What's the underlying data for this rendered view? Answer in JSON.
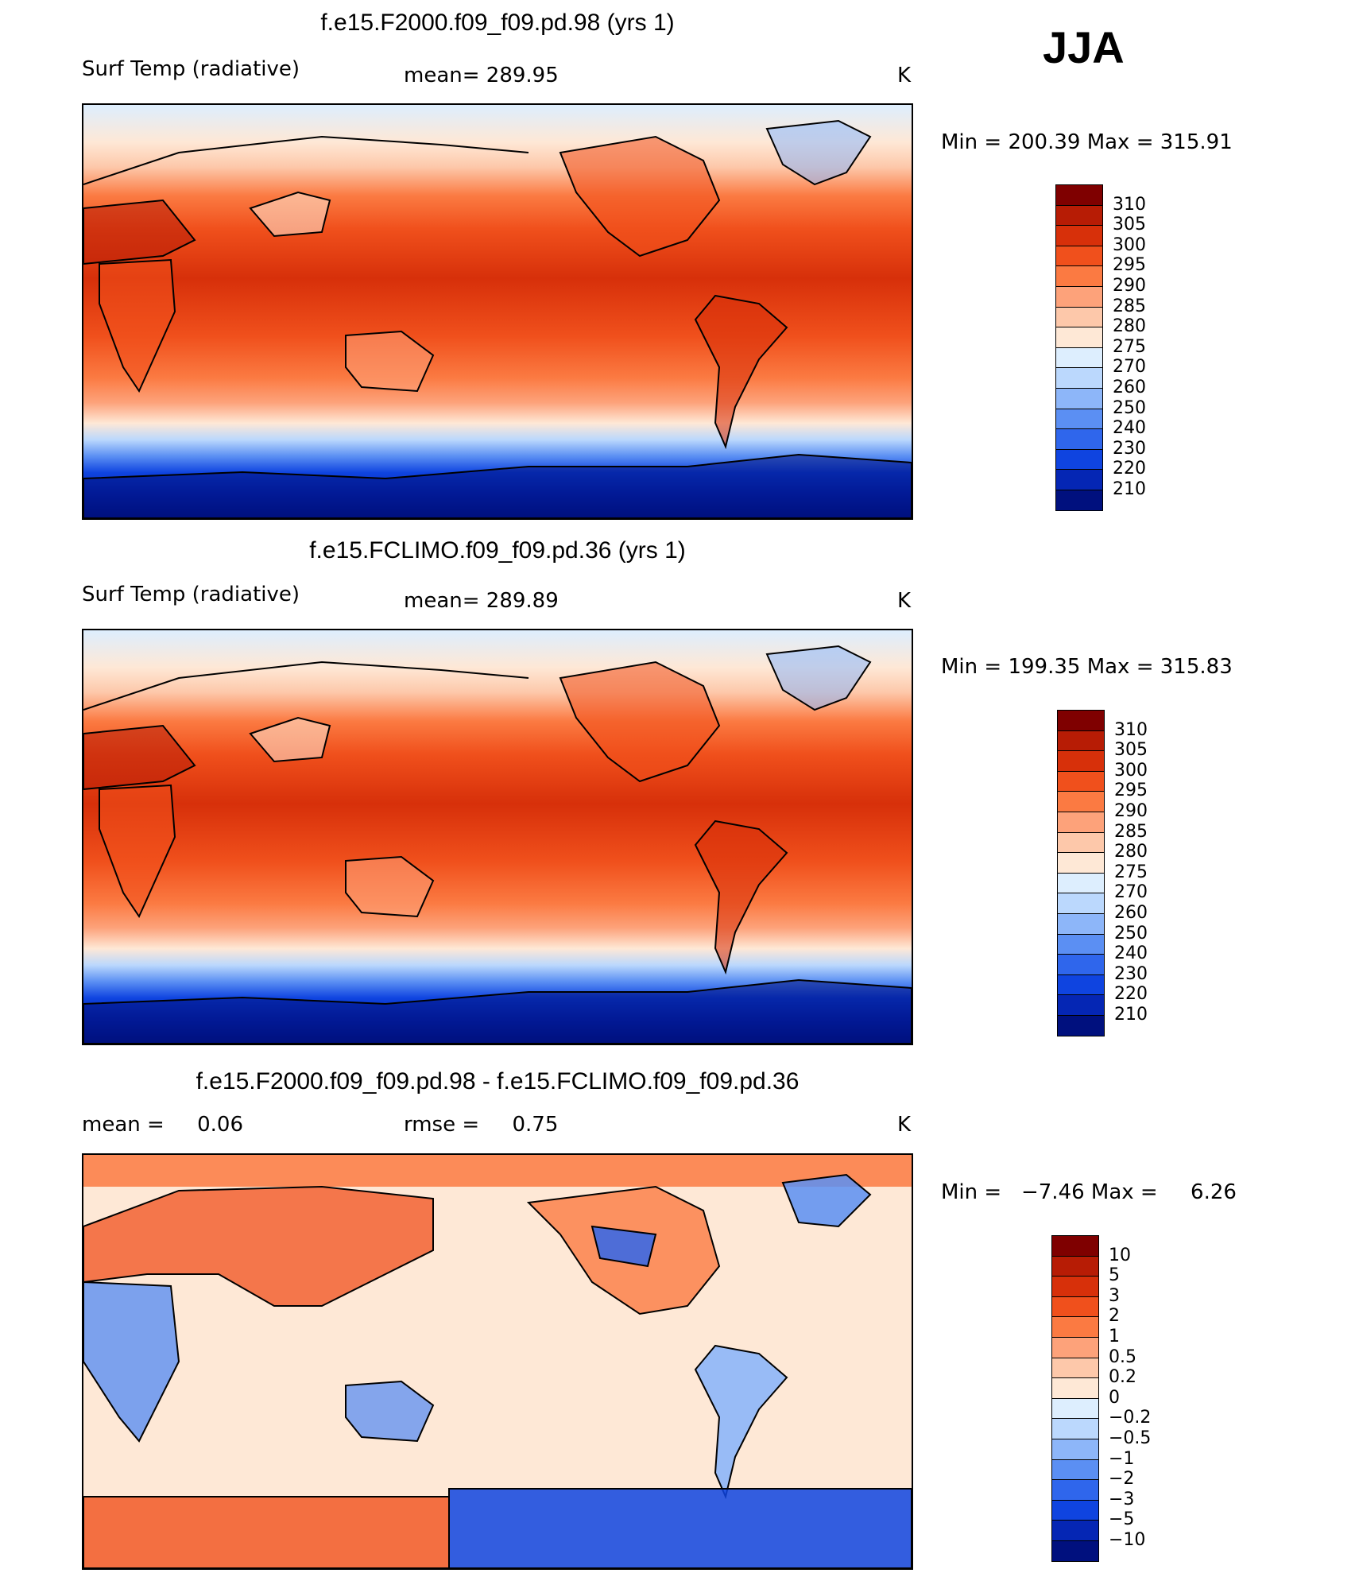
{
  "season": "JJA",
  "panels": [
    {
      "title": "f.e15.F2000.f09_f09.pd.98 (yrs 1)",
      "left_label": "Surf Temp (radiative)",
      "center_label": "mean= 289.95",
      "right_label": "K",
      "minmax": "Min = 200.39 Max = 315.91",
      "cbar_labels": [
        "310",
        "305",
        "300",
        "295",
        "290",
        "285",
        "280",
        "275",
        "270",
        "260",
        "250",
        "240",
        "230",
        "220",
        "210"
      ],
      "cbar_colors": [
        "#7f0000",
        "#b71c05",
        "#d7300a",
        "#f0501c",
        "#fb7a42",
        "#fda27a",
        "#fdc8aa",
        "#fee8d6",
        "#ddeefe",
        "#bbd8fd",
        "#8db6f9",
        "#5b8ff3",
        "#2f66ec",
        "#0f44e0",
        "#0526b4",
        "#00107e"
      ]
    },
    {
      "title": "f.e15.FCLIMO.f09_f09.pd.36 (yrs 1)",
      "left_label": "Surf Temp (radiative)",
      "center_label": "mean= 289.89",
      "right_label": "K",
      "minmax": "Min = 199.35 Max = 315.83",
      "cbar_labels": [
        "310",
        "305",
        "300",
        "295",
        "290",
        "285",
        "280",
        "275",
        "270",
        "260",
        "250",
        "240",
        "230",
        "220",
        "210"
      ],
      "cbar_colors": [
        "#7f0000",
        "#b71c05",
        "#d7300a",
        "#f0501c",
        "#fb7a42",
        "#fda27a",
        "#fdc8aa",
        "#fee8d6",
        "#ddeefe",
        "#bbd8fd",
        "#8db6f9",
        "#5b8ff3",
        "#2f66ec",
        "#0f44e0",
        "#0526b4",
        "#00107e"
      ]
    },
    {
      "title": "f.e15.F2000.f09_f09.pd.98 - f.e15.FCLIMO.f09_f09.pd.36",
      "left_label": "mean =     0.06",
      "center_label": "rmse =     0.75",
      "right_label": "K",
      "minmax": "Min =   −7.46 Max =     6.26",
      "cbar_labels": [
        "10",
        "5",
        "3",
        "2",
        "1",
        "0.5",
        "0.2",
        "0",
        "−0.2",
        "−0.5",
        "−1",
        "−2",
        "−3",
        "−5",
        "−10"
      ],
      "cbar_colors": [
        "#7f0000",
        "#b71c05",
        "#d7300a",
        "#f0501c",
        "#fb7a42",
        "#fda27a",
        "#fdc8aa",
        "#fee8d6",
        "#ddeefe",
        "#bbd8fd",
        "#8db6f9",
        "#5b8ff3",
        "#2f66ec",
        "#0f44e0",
        "#0526b4",
        "#00107e"
      ]
    }
  ]
}
